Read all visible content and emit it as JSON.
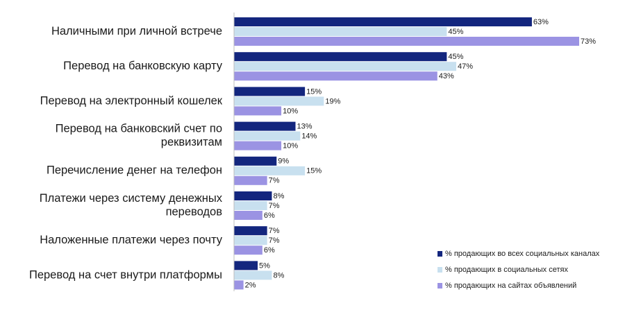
{
  "chart_data": {
    "type": "bar",
    "orientation": "horizontal",
    "categories": [
      "Наличными при личной встрече",
      "Перевод на банковскую карту",
      "Перевод на электронный кошелек",
      "Перевод на банковский счет по реквизитам",
      "Перечисление денег на телефон",
      "Платежи через систему денежных переводов",
      "Наложенные платежи через почту",
      "Перевод на счет внутри платформы"
    ],
    "category_lines": [
      [
        "Наличными при личной встрече"
      ],
      [
        "Перевод на банковскую карту"
      ],
      [
        "Перевод на электронный кошелек"
      ],
      [
        "Перевод на банковский счет по",
        "реквизитам"
      ],
      [
        "Перечисление денег на телефон"
      ],
      [
        "Платежи через систему денежных",
        "переводов"
      ],
      [
        "Наложенные платежи через почту"
      ],
      [
        "Перевод на счет внутри платформы"
      ]
    ],
    "series": [
      {
        "name": "% продающих во всех социальных каналах",
        "color": "#13267e",
        "values": [
          63,
          45,
          15,
          13,
          9,
          8,
          7,
          5
        ],
        "labels": [
          "63%",
          "45%",
          "15%",
          "13%",
          "9%",
          "8%",
          "7%",
          "5%"
        ]
      },
      {
        "name": "% продающих в социальных сетях",
        "color": "#c8e0ef",
        "values": [
          45,
          47,
          19,
          14,
          15,
          7,
          7,
          8
        ],
        "labels": [
          "45%",
          "47%",
          "19%",
          "14%",
          "15%",
          "7%",
          "7%",
          "8%"
        ]
      },
      {
        "name": "% продающих на сайтах объявлений",
        "color": "#9b93e3",
        "values": [
          73,
          43,
          10,
          10,
          7,
          6,
          6,
          2
        ],
        "labels": [
          "73%",
          "43%",
          "10%",
          "10%",
          "7%",
          "6%",
          "6%",
          "2%"
        ]
      }
    ],
    "xlim": [
      0,
      73
    ],
    "legend_position": "bottom-right",
    "grid": false
  }
}
